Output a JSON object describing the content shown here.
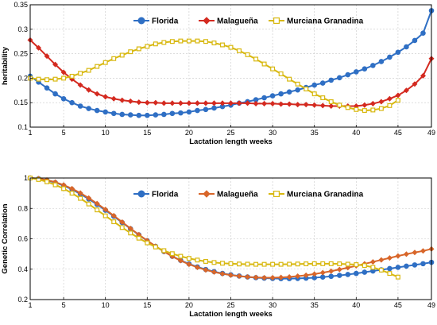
{
  "chart_data": [
    {
      "type": "line",
      "xlabel": "Lactation length   weeks",
      "ylabel": "heritability",
      "xlim": [
        1,
        49
      ],
      "ylim": [
        0.1,
        0.35
      ],
      "xticks": [
        1,
        5,
        10,
        15,
        20,
        25,
        30,
        35,
        40,
        45,
        49
      ],
      "yticks": [
        0.1,
        0.15,
        0.2,
        0.25,
        0.3,
        0.35
      ],
      "ytick_labels": [
        "0.1",
        "0.15",
        "0.2",
        "0.25",
        "0.3",
        "0.35"
      ],
      "grid": true,
      "legend_position": "top",
      "series": [
        {
          "name": "Florida",
          "color": "#2f6fc4",
          "marker": "circle",
          "x": [
            1,
            2,
            3,
            4,
            5,
            6,
            7,
            8,
            9,
            10,
            11,
            12,
            13,
            14,
            15,
            16,
            17,
            18,
            19,
            20,
            21,
            22,
            23,
            24,
            25,
            26,
            27,
            28,
            29,
            30,
            31,
            32,
            33,
            34,
            35,
            36,
            37,
            38,
            39,
            40,
            41,
            42,
            43,
            44,
            45,
            46,
            47,
            48,
            49
          ],
          "values": [
            0.204,
            0.192,
            0.18,
            0.168,
            0.158,
            0.15,
            0.143,
            0.138,
            0.134,
            0.131,
            0.128,
            0.126,
            0.125,
            0.124,
            0.124,
            0.125,
            0.126,
            0.128,
            0.129,
            0.131,
            0.134,
            0.136,
            0.139,
            0.142,
            0.145,
            0.149,
            0.152,
            0.156,
            0.16,
            0.164,
            0.168,
            0.172,
            0.176,
            0.181,
            0.186,
            0.19,
            0.196,
            0.201,
            0.207,
            0.213,
            0.219,
            0.226,
            0.234,
            0.243,
            0.253,
            0.264,
            0.277,
            0.292,
            0.338
          ]
        },
        {
          "name": "Malagueña",
          "color": "#d42a20",
          "marker": "diamond",
          "x": [
            1,
            2,
            3,
            4,
            5,
            6,
            7,
            8,
            9,
            10,
            11,
            12,
            13,
            14,
            15,
            16,
            17,
            18,
            19,
            20,
            21,
            22,
            23,
            24,
            25,
            26,
            27,
            28,
            29,
            30,
            31,
            32,
            33,
            34,
            35,
            36,
            37,
            38,
            39,
            40,
            41,
            42,
            43,
            44,
            45,
            46,
            47,
            48,
            49
          ],
          "values": [
            0.278,
            0.262,
            0.245,
            0.228,
            0.212,
            0.198,
            0.186,
            0.176,
            0.168,
            0.162,
            0.158,
            0.155,
            0.153,
            0.151,
            0.15,
            0.15,
            0.149,
            0.149,
            0.149,
            0.149,
            0.149,
            0.149,
            0.149,
            0.149,
            0.149,
            0.149,
            0.149,
            0.148,
            0.148,
            0.148,
            0.147,
            0.147,
            0.146,
            0.146,
            0.145,
            0.144,
            0.143,
            0.143,
            0.143,
            0.143,
            0.145,
            0.148,
            0.152,
            0.158,
            0.165,
            0.175,
            0.188,
            0.205,
            0.24
          ]
        },
        {
          "name": "Murciana Granadina",
          "color": "#d8b810",
          "marker": "square",
          "x": [
            1,
            2,
            3,
            4,
            5,
            6,
            7,
            8,
            9,
            10,
            11,
            12,
            13,
            14,
            15,
            16,
            17,
            18,
            19,
            20,
            21,
            22,
            23,
            24,
            25,
            26,
            27,
            28,
            29,
            30,
            31,
            32,
            33,
            34,
            35,
            36,
            37,
            38,
            39,
            40,
            41,
            42,
            43,
            44,
            45
          ],
          "values": [
            0.2,
            0.198,
            0.197,
            0.198,
            0.2,
            0.204,
            0.21,
            0.216,
            0.224,
            0.232,
            0.24,
            0.247,
            0.254,
            0.26,
            0.265,
            0.27,
            0.273,
            0.275,
            0.276,
            0.276,
            0.276,
            0.275,
            0.272,
            0.268,
            0.263,
            0.256,
            0.248,
            0.239,
            0.229,
            0.219,
            0.209,
            0.198,
            0.188,
            0.178,
            0.168,
            0.16,
            0.152,
            0.145,
            0.14,
            0.136,
            0.134,
            0.135,
            0.138,
            0.144,
            0.155
          ]
        }
      ]
    },
    {
      "type": "line",
      "xlabel": "Lactation length   weeks",
      "ylabel": "Genetic Correlation",
      "xlim": [
        1,
        49
      ],
      "ylim": [
        0.2,
        1.0
      ],
      "xticks": [
        1,
        5,
        10,
        15,
        20,
        25,
        30,
        35,
        40,
        45,
        49
      ],
      "yticks": [
        0.2,
        0.4,
        0.6,
        0.8,
        1.0
      ],
      "ytick_labels": [
        "0.2",
        "0.4",
        "0.6",
        "0.8",
        "1"
      ],
      "grid": true,
      "legend_position": "top",
      "series": [
        {
          "name": "Florida",
          "color": "#2f6fc4",
          "marker": "circle",
          "x": [
            1,
            2,
            3,
            4,
            5,
            6,
            7,
            8,
            9,
            10,
            11,
            12,
            13,
            14,
            15,
            16,
            17,
            18,
            19,
            20,
            21,
            22,
            23,
            24,
            25,
            26,
            27,
            28,
            29,
            30,
            31,
            32,
            33,
            34,
            35,
            36,
            37,
            38,
            39,
            40,
            41,
            42,
            43,
            44,
            45,
            46,
            47,
            48,
            49
          ],
          "values": [
            1.0,
            0.995,
            0.985,
            0.97,
            0.95,
            0.925,
            0.895,
            0.862,
            0.826,
            0.788,
            0.748,
            0.707,
            0.666,
            0.626,
            0.587,
            0.55,
            0.516,
            0.485,
            0.458,
            0.435,
            0.415,
            0.398,
            0.384,
            0.372,
            0.363,
            0.355,
            0.349,
            0.344,
            0.341,
            0.339,
            0.338,
            0.338,
            0.339,
            0.341,
            0.344,
            0.348,
            0.353,
            0.359,
            0.365,
            0.372,
            0.38,
            0.388,
            0.396,
            0.404,
            0.412,
            0.42,
            0.428,
            0.436,
            0.445
          ]
        },
        {
          "name": "Malagueña",
          "color": "#d8662a",
          "marker": "diamond",
          "x": [
            1,
            2,
            3,
            4,
            5,
            6,
            7,
            8,
            9,
            10,
            11,
            12,
            13,
            14,
            15,
            16,
            17,
            18,
            19,
            20,
            21,
            22,
            23,
            24,
            25,
            26,
            27,
            28,
            29,
            30,
            31,
            32,
            33,
            34,
            35,
            36,
            37,
            38,
            39,
            40,
            41,
            42,
            43,
            44,
            45,
            46,
            47,
            48,
            49
          ],
          "values": [
            1.0,
            0.996,
            0.987,
            0.973,
            0.954,
            0.93,
            0.901,
            0.868,
            0.832,
            0.793,
            0.752,
            0.71,
            0.668,
            0.627,
            0.588,
            0.551,
            0.516,
            0.484,
            0.456,
            0.432,
            0.412,
            0.395,
            0.381,
            0.37,
            0.361,
            0.354,
            0.349,
            0.346,
            0.344,
            0.344,
            0.346,
            0.349,
            0.354,
            0.36,
            0.368,
            0.377,
            0.387,
            0.398,
            0.41,
            0.422,
            0.435,
            0.448,
            0.461,
            0.474,
            0.487,
            0.499,
            0.51,
            0.52,
            0.533
          ]
        },
        {
          "name": "Murciana Granadina",
          "color": "#d8b810",
          "marker": "square",
          "x": [
            1,
            2,
            3,
            4,
            5,
            6,
            7,
            8,
            9,
            10,
            11,
            12,
            13,
            14,
            15,
            16,
            17,
            18,
            19,
            20,
            21,
            22,
            23,
            24,
            25,
            26,
            27,
            28,
            29,
            30,
            31,
            32,
            33,
            34,
            35,
            36,
            37,
            38,
            39,
            40,
            41,
            42,
            43,
            44,
            45
          ],
          "values": [
            1.0,
            0.99,
            0.975,
            0.955,
            0.93,
            0.9,
            0.866,
            0.829,
            0.79,
            0.751,
            0.712,
            0.674,
            0.638,
            0.604,
            0.573,
            0.546,
            0.522,
            0.502,
            0.485,
            0.471,
            0.46,
            0.451,
            0.444,
            0.439,
            0.436,
            0.434,
            0.433,
            0.432,
            0.432,
            0.432,
            0.432,
            0.433,
            0.434,
            0.435,
            0.436,
            0.436,
            0.436,
            0.435,
            0.433,
            0.43,
            0.424,
            0.412,
            0.394,
            0.372,
            0.348
          ]
        }
      ]
    }
  ]
}
